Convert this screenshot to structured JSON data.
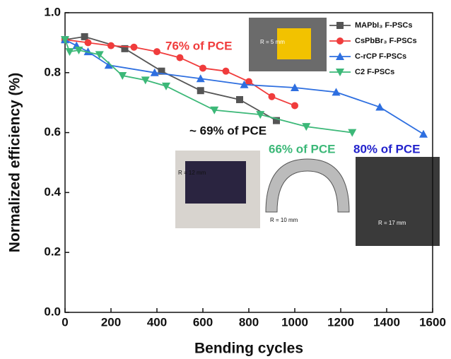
{
  "chart_data": {
    "type": "line",
    "xlabel": "Bending cycles",
    "ylabel": "Normalized efficiency (%)",
    "xlim": [
      0,
      1600
    ],
    "xticks": [
      0,
      200,
      400,
      600,
      800,
      1000,
      1200,
      1400,
      1600
    ],
    "ylim": [
      0,
      1
    ],
    "yticks": [
      {
        "value": 0,
        "label": "0.0"
      },
      0.2,
      0.4,
      0.6,
      0.8,
      {
        "value": 1,
        "label": "1.0"
      }
    ],
    "legend": "upper right",
    "series": [
      {
        "name": "MAPbI₃ F-PSCs",
        "color": "#555555",
        "marker": "square",
        "x": [
          0,
          85,
          260,
          420,
          590,
          760,
          920
        ],
        "values": [
          0.91,
          0.92,
          0.88,
          0.805,
          0.74,
          0.71,
          0.64
        ]
      },
      {
        "name": "CsPbBr₃ F-PSCs",
        "color": "#f03c3c",
        "marker": "circle",
        "x": [
          0,
          100,
          200,
          300,
          400,
          500,
          600,
          700,
          800,
          900,
          1000
        ],
        "values": [
          0.91,
          0.9,
          0.89,
          0.885,
          0.87,
          0.85,
          0.815,
          0.805,
          0.77,
          0.72,
          0.69
        ]
      },
      {
        "name": "C-rCP F-PSCs",
        "color": "#2e6fe0",
        "marker": "triangle-up",
        "x": [
          0,
          50,
          100,
          190,
          390,
          590,
          780,
          1000,
          1180,
          1370,
          1560
        ],
        "values": [
          0.91,
          0.89,
          0.87,
          0.825,
          0.8,
          0.78,
          0.76,
          0.75,
          0.735,
          0.685,
          0.595
        ]
      },
      {
        "name": "C2 F-PSCs",
        "color": "#3cb878",
        "marker": "triangle-down",
        "x": [
          0,
          20,
          60,
          150,
          250,
          350,
          440,
          650,
          850,
          1050,
          1250
        ],
        "values": [
          0.91,
          0.87,
          0.875,
          0.86,
          0.79,
          0.775,
          0.755,
          0.675,
          0.66,
          0.62,
          0.6
        ]
      }
    ],
    "annotations": [
      {
        "text": "76% of PCE",
        "color": "#f03c3c"
      },
      {
        "text": "~ 69% of PCE",
        "color": "#111111"
      },
      {
        "text": "66% of PCE",
        "color": "#3cb878"
      },
      {
        "text": "80% of PCE",
        "color": "#2222cc"
      }
    ],
    "insets": [
      {
        "label": "R = 5 mm"
      },
      {
        "label": "R = 12 mm"
      },
      {
        "label": "R = 10 mm"
      },
      {
        "label": "R = 17 mm"
      }
    ]
  }
}
